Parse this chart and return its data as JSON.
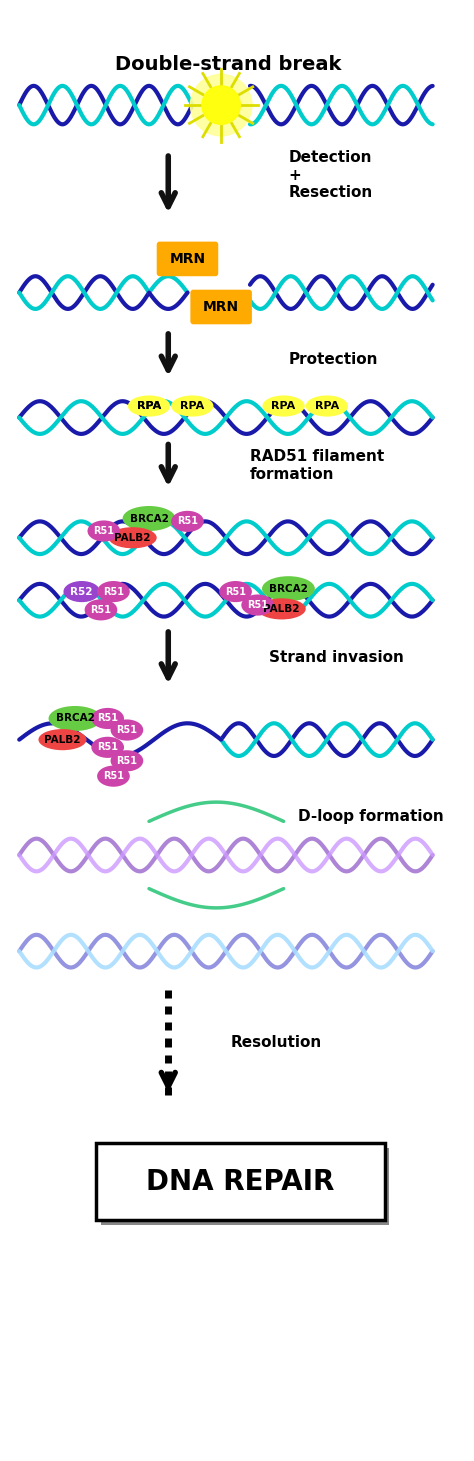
{
  "title": "Double-strand break",
  "bg_color": "#ffffff",
  "dna_blue": "#1a1aaa",
  "dna_cyan": "#00cccc",
  "dna_purple": "#9966cc",
  "dna_light_purple": "#cc99ff",
  "mrn_color": "#ffaa00",
  "rpa_yellow": "#ffff44",
  "rpa_green": "#aadd00",
  "brca2_green": "#66cc44",
  "palb2_red": "#ee4444",
  "rad51_magenta": "#cc44aa",
  "rad52_purple": "#9944cc",
  "arrow_color": "#111111",
  "steps": [
    "Double-strand break",
    "Detection\n+\nResection",
    "Protection",
    "RAD51 filament\nformation",
    "Strand invasion",
    "D-loop formation",
    "Resolution",
    "DNA REPAIR"
  ]
}
